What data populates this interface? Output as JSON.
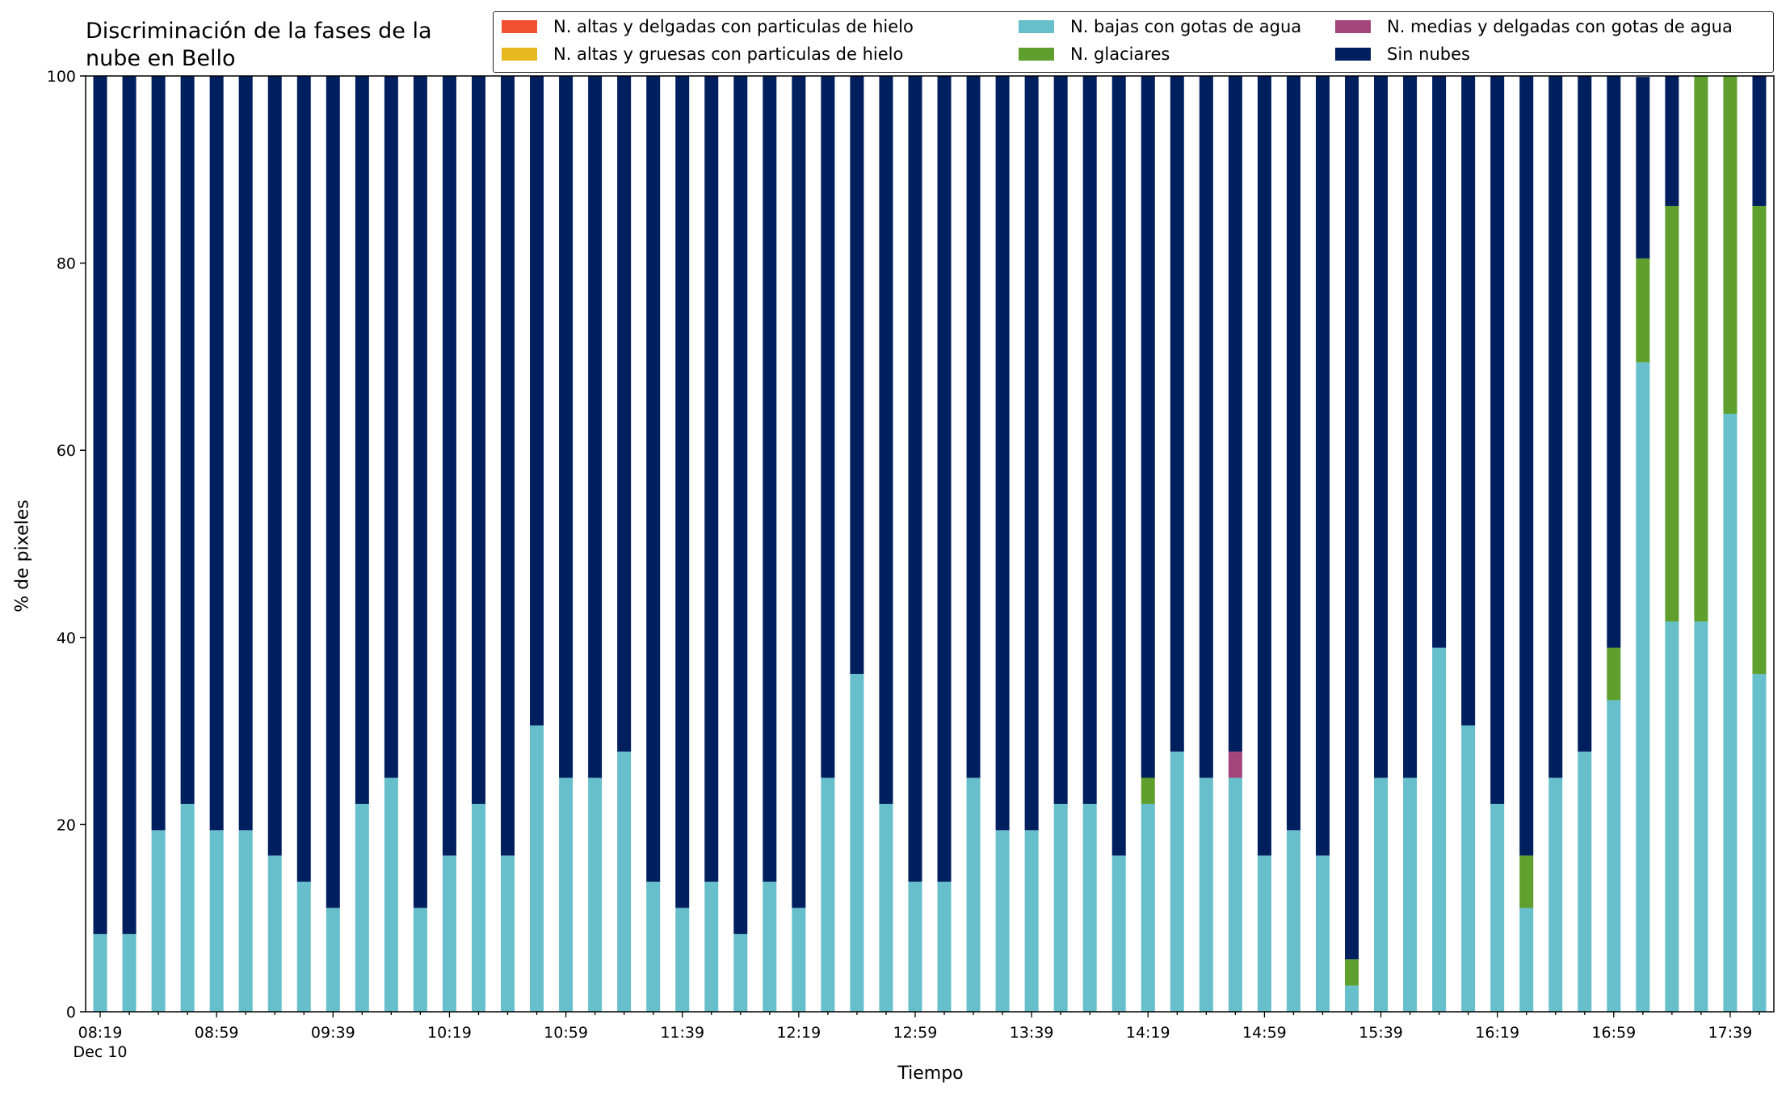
{
  "chart_data": {
    "type": "bar",
    "stacked": true,
    "title": "Discriminación de la fases de la\nnube en Bello",
    "xlabel": "Tiempo",
    "ylabel": "% de pixeles",
    "ylim": [
      0,
      100
    ],
    "yticks": [
      0,
      20,
      40,
      60,
      80,
      100
    ],
    "xtick_labels": [
      "08:19\nDec 10",
      "08:59",
      "09:39",
      "10:19",
      "10:59",
      "11:39",
      "12:19",
      "12:59",
      "13:39",
      "14:19",
      "14:59",
      "15:39",
      "16:19",
      "16:59",
      "17:39"
    ],
    "categories": [
      "08:19",
      "08:29",
      "08:39",
      "08:49",
      "08:59",
      "09:09",
      "09:19",
      "09:29",
      "09:39",
      "09:49",
      "09:59",
      "10:09",
      "10:19",
      "10:29",
      "10:39",
      "10:49",
      "10:59",
      "11:09",
      "11:19",
      "11:29",
      "11:39",
      "11:49",
      "11:59",
      "12:09",
      "12:19",
      "12:29",
      "12:39",
      "12:49",
      "12:59",
      "13:09",
      "13:19",
      "13:29",
      "13:39",
      "13:49",
      "13:59",
      "14:09",
      "14:19",
      "14:29",
      "14:39",
      "14:49",
      "14:59",
      "15:09",
      "15:19",
      "15:29",
      "15:39",
      "15:49",
      "15:59",
      "16:09",
      "16:19",
      "16:29",
      "16:39",
      "16:49",
      "16:59",
      "17:09",
      "17:19",
      "17:29",
      "17:39",
      "17:49"
    ],
    "grid": false,
    "legend_placement": "top-right",
    "series": [
      {
        "name": "N. altas y delgadas con particulas de hielo",
        "color": "#f0502d",
        "values": [
          0,
          0,
          0,
          0,
          0,
          0,
          0,
          0,
          0,
          0,
          0,
          0,
          0,
          0,
          0,
          0,
          0,
          0,
          0,
          0,
          0,
          0,
          0,
          0,
          0,
          0,
          0,
          0,
          0,
          0,
          0,
          0,
          0,
          0,
          0,
          0,
          0,
          0,
          0,
          0,
          0,
          0,
          0,
          0,
          0,
          0,
          0,
          0,
          0,
          0,
          0,
          0,
          0,
          0,
          0,
          0,
          0,
          0
        ]
      },
      {
        "name": "N. altas y gruesas con particulas de hielo",
        "color": "#e6b91e",
        "values": [
          0,
          0,
          0,
          0,
          0,
          0,
          0,
          0,
          0,
          0,
          0,
          0,
          0,
          0,
          0,
          0,
          0,
          0,
          0,
          0,
          0,
          0,
          0,
          0,
          0,
          0,
          0,
          0,
          0,
          0,
          0,
          0,
          0,
          0,
          0,
          0,
          0,
          0,
          0,
          0,
          0,
          0,
          0,
          0,
          0,
          0,
          0,
          0,
          0,
          0,
          0,
          0,
          0,
          0,
          0,
          0,
          0,
          0
        ]
      },
      {
        "name": "N. bajas con gotas de agua",
        "color": "#67bfcc",
        "values": [
          8.3,
          8.3,
          19.4,
          22.2,
          19.4,
          19.4,
          16.7,
          13.9,
          11.1,
          22.2,
          25.0,
          11.1,
          16.7,
          22.2,
          16.7,
          30.6,
          25.0,
          25.0,
          27.8,
          13.9,
          11.1,
          13.9,
          8.3,
          13.9,
          11.1,
          25.0,
          36.1,
          22.2,
          13.9,
          13.9,
          25.0,
          19.4,
          19.4,
          22.2,
          22.2,
          16.7,
          22.2,
          27.8,
          25.0,
          25.0,
          16.7,
          19.4,
          16.7,
          2.8,
          25.0,
          25.0,
          38.9,
          30.6,
          22.2,
          11.1,
          25.0,
          27.8,
          33.3,
          69.4,
          41.7,
          41.7,
          63.9,
          36.1
        ]
      },
      {
        "name": "N. glaciares",
        "color": "#5f9f2e",
        "values": [
          0,
          0,
          0,
          0,
          0,
          0,
          0,
          0,
          0,
          0,
          0,
          0,
          0,
          0,
          0,
          0,
          0,
          0,
          0,
          0,
          0,
          0,
          0,
          0,
          0,
          0,
          0,
          0,
          0,
          0,
          0,
          0,
          0,
          0,
          0,
          0,
          2.8,
          0,
          0,
          0,
          0,
          0,
          0,
          2.8,
          0,
          0,
          0,
          0,
          0,
          5.6,
          0,
          0,
          5.6,
          11.1,
          44.4,
          58.3,
          36.1,
          50.0
        ]
      },
      {
        "name": "N. medias y delgadas con gotas de agua",
        "color": "#a3457a",
        "values": [
          0,
          0,
          0,
          0,
          0,
          0,
          0,
          0,
          0,
          0,
          0,
          0,
          0,
          0,
          0,
          0,
          0,
          0,
          0,
          0,
          0,
          0,
          0,
          0,
          0,
          0,
          0,
          0,
          0,
          0,
          0,
          0,
          0,
          0,
          0,
          0,
          0,
          0,
          0,
          2.8,
          0,
          0,
          0,
          0,
          0,
          0,
          0,
          0,
          0,
          0,
          0,
          0,
          0,
          0,
          0,
          0,
          0,
          0
        ]
      },
      {
        "name": "Sin nubes",
        "color": "#001f5e",
        "values": [
          91.7,
          91.7,
          80.6,
          77.8,
          80.6,
          80.6,
          83.3,
          86.1,
          88.9,
          77.8,
          75.0,
          88.9,
          83.3,
          77.8,
          83.3,
          69.4,
          75.0,
          75.0,
          72.2,
          86.1,
          88.9,
          86.1,
          91.7,
          86.1,
          88.9,
          75.0,
          63.9,
          77.8,
          86.1,
          86.1,
          75.0,
          80.6,
          80.6,
          77.8,
          77.8,
          83.3,
          75.0,
          72.2,
          75.0,
          72.2,
          83.3,
          80.6,
          83.3,
          94.4,
          75.0,
          75.0,
          61.1,
          69.4,
          77.8,
          83.3,
          75.0,
          72.2,
          61.1,
          19.4,
          13.9,
          0,
          0,
          13.9
        ]
      }
    ]
  }
}
